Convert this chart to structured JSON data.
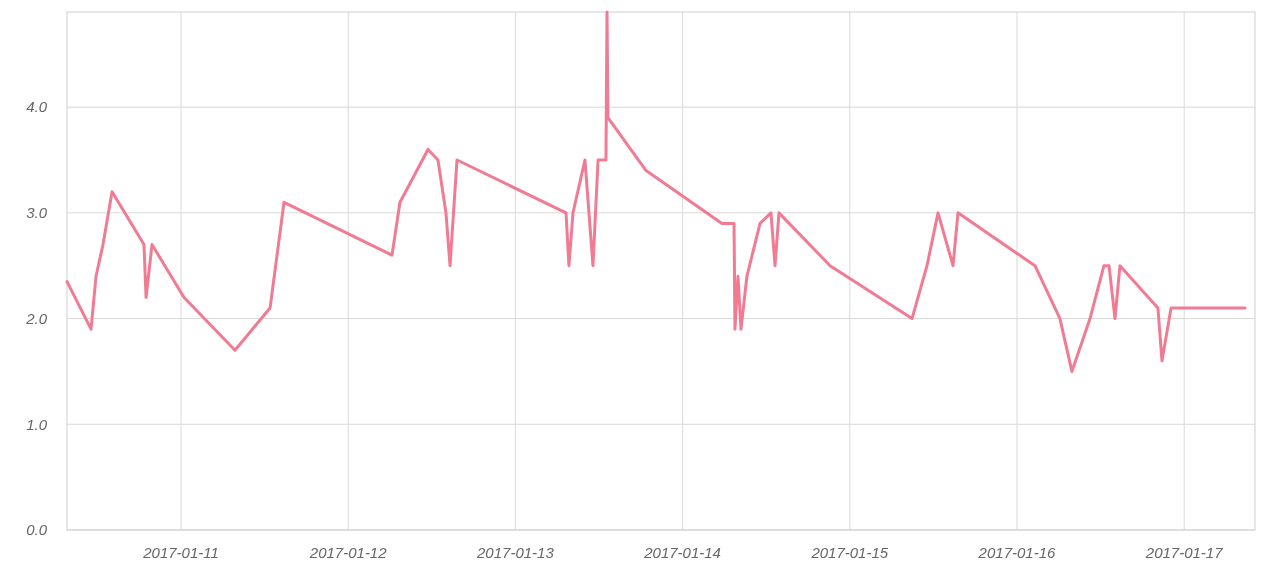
{
  "chart_data": {
    "type": "line",
    "x": [
      "2017-01-10T07:38",
      "2017-01-10T11:05",
      "2017-01-10T11:48",
      "2017-01-10T12:48",
      "2017-01-10T14:06",
      "2017-01-10T18:41",
      "2017-01-10T18:59",
      "2017-01-10T19:50",
      "2017-01-11T00:26",
      "2017-01-11T07:45",
      "2017-01-11T12:47",
      "2017-01-11T14:47",
      "2017-01-12T06:17",
      "2017-01-12T07:26",
      "2017-01-12T11:27",
      "2017-01-12T12:53",
      "2017-01-12T14:02",
      "2017-01-12T14:37",
      "2017-01-12T15:37",
      "2017-01-13T07:16",
      "2017-01-13T07:41",
      "2017-01-13T08:16",
      "2017-01-13T09:59",
      "2017-01-13T11:08",
      "2017-01-13T11:52",
      "2017-01-13T13:00",
      "2017-01-13T13:09",
      "2017-01-13T13:17",
      "2017-01-13T18:45",
      "2017-01-14T05:39",
      "2017-01-14T07:23",
      "2017-01-14T07:31",
      "2017-01-14T07:57",
      "2017-01-14T08:23",
      "2017-01-14T09:14",
      "2017-01-14T11:07",
      "2017-01-14T12:41",
      "2017-01-14T13:16",
      "2017-01-14T13:50",
      "2017-01-14T21:10",
      "2017-01-15T08:56",
      "2017-01-15T11:05",
      "2017-01-15T12:40",
      "2017-01-15T14:49",
      "2017-01-15T15:32",
      "2017-01-16T02:35",
      "2017-01-16T06:10",
      "2017-01-16T07:53",
      "2017-01-16T10:29",
      "2017-01-16T12:29",
      "2017-01-16T13:13",
      "2017-01-16T14:04",
      "2017-01-16T14:47",
      "2017-01-16T20:14",
      "2017-01-16T20:49",
      "2017-01-16T22:07",
      "2017-01-17T08:44"
    ],
    "series": [
      {
        "color": "#f07b93",
        "values": [
          2.35,
          1.9,
          2.4,
          2.7,
          3.2,
          2.7,
          2.2,
          2.7,
          2.2,
          1.7,
          2.1,
          3.1,
          2.6,
          3.1,
          3.6,
          3.5,
          3.0,
          2.5,
          3.5,
          3.0,
          2.5,
          3.0,
          3.5,
          2.5,
          3.5,
          3.5,
          4.9,
          3.9,
          3.4,
          2.9,
          2.9,
          1.9,
          2.4,
          1.9,
          2.4,
          2.9,
          3.0,
          2.5,
          3.0,
          2.5,
          2.0,
          2.5,
          3.0,
          2.5,
          3.0,
          2.5,
          2.0,
          1.5,
          2.0,
          2.5,
          2.5,
          2.0,
          2.5,
          2.1,
          1.6,
          2.1,
          2.1
        ]
      }
    ],
    "xlim": [
      "2017-01-10T07:38",
      "2017-01-17T10:10"
    ],
    "xticks": [
      "2017-01-11",
      "2017-01-12",
      "2017-01-13",
      "2017-01-14",
      "2017-01-15",
      "2017-01-16",
      "2017-01-17"
    ],
    "ylim": [
      0,
      4.9
    ],
    "yticks": [
      {
        "value": 0,
        "label": "0.0"
      },
      {
        "value": 1,
        "label": "1.0"
      },
      {
        "value": 2,
        "label": "2.0"
      },
      {
        "value": 3,
        "label": "3.0"
      },
      {
        "value": 4,
        "label": "4.0"
      }
    ],
    "grid": true,
    "marker": "none",
    "line_style": "solid"
  }
}
